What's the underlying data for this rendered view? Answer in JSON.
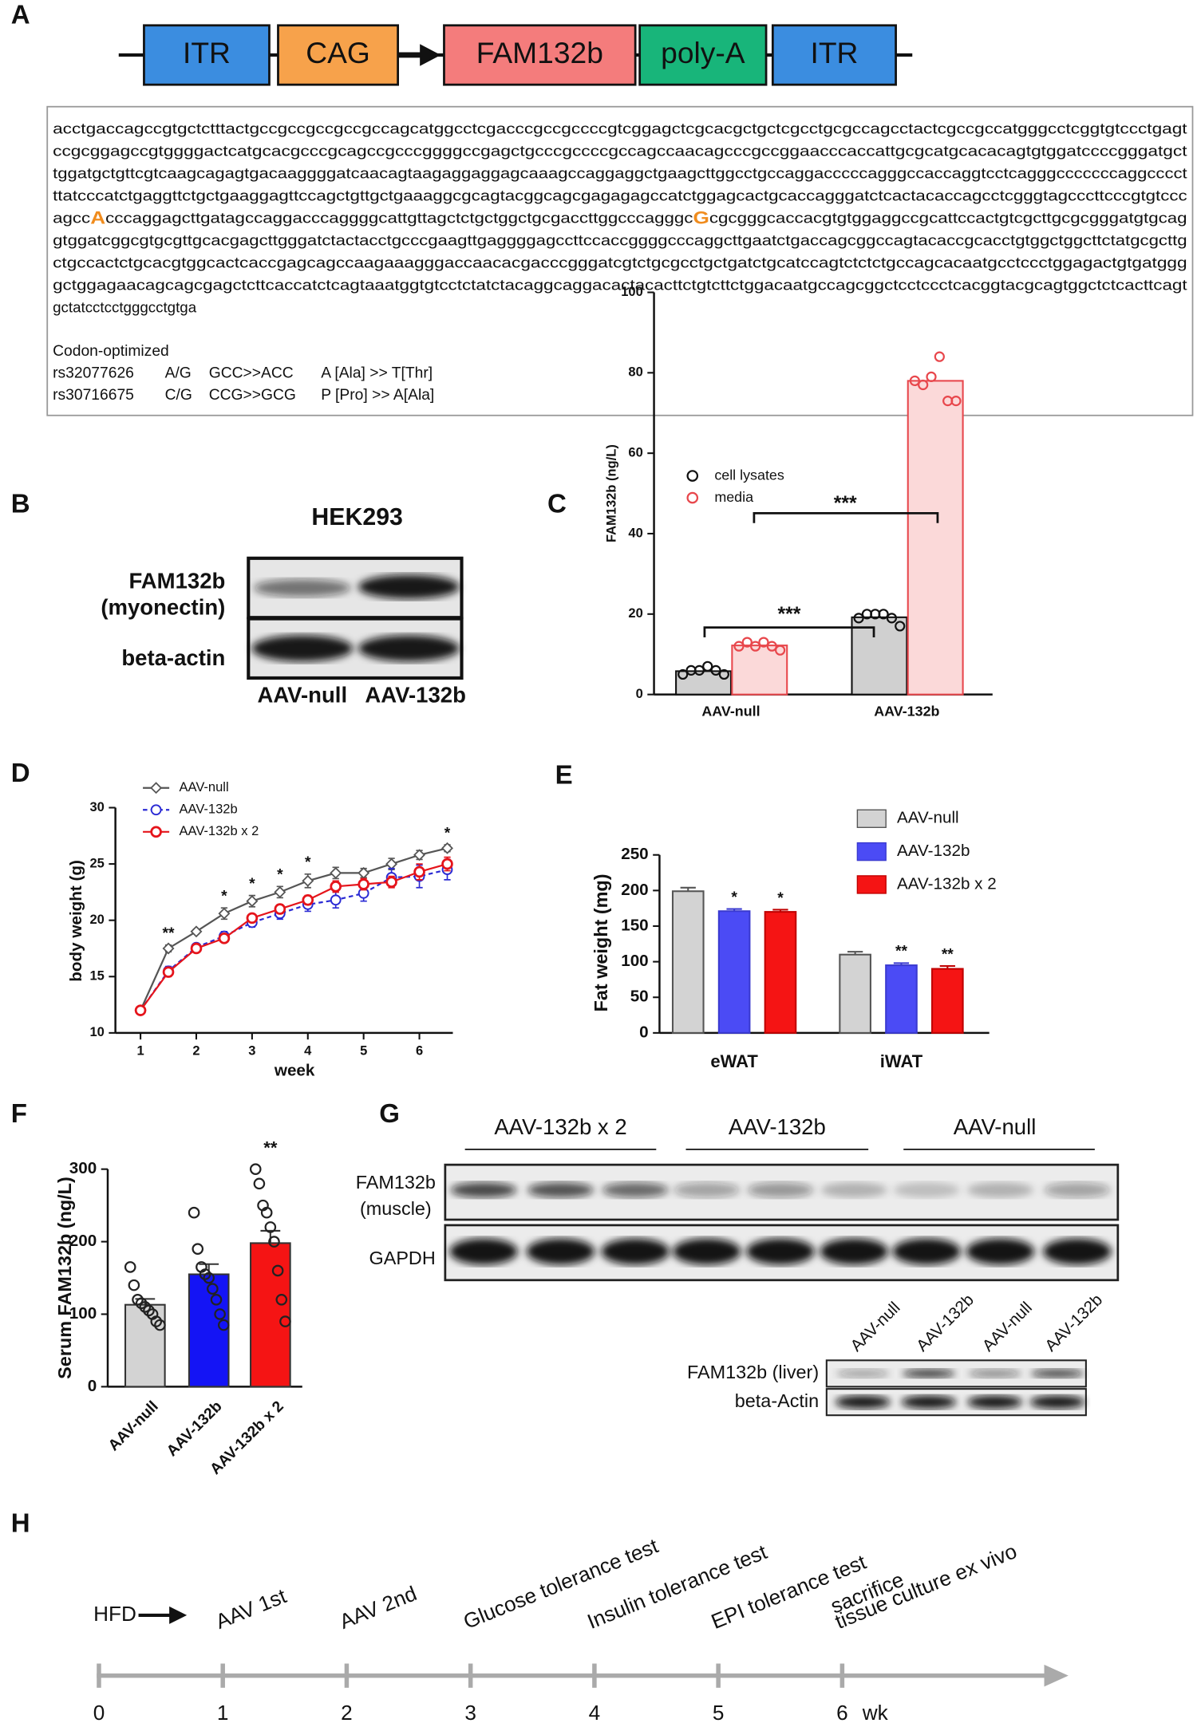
{
  "panel_labels": [
    "A",
    "B",
    "C",
    "D",
    "E",
    "F",
    "G",
    "H"
  ],
  "construct": {
    "elements": [
      {
        "label": "ITR",
        "color": "#3b8de0"
      },
      {
        "label": "CAG",
        "color": "#f7a24b"
      },
      {
        "label": "FAM132b",
        "color": "#f47c7c"
      },
      {
        "label": "poly-A",
        "color": "#18b57a"
      },
      {
        "label": "ITR",
        "color": "#3b8de0"
      }
    ]
  },
  "sequence": {
    "highlight_color": "#f08c1e",
    "lines": [
      [
        "acctgaccagccgtgctctttactgccgccgccgccgccagcatggcctcgacccgccgccccgtcggagctcgcacgctgctcgcctgcgccagcctactcgccgccatgggcctcggtgtccctgagt"
      ],
      [
        "ccgcggagccgtggggactcatgcacgcccgcagccgcccggggccgagctgcccgccccgccagccaacagcccgccggaacccaccattgcgcatgcacacagtgtggatccccgggatgct"
      ],
      [
        "tggatgctgttcgtcaagcagagtgacaaggggatcaacagtaagaggaggagcaaagccaggaggctgaagcttggcctgccaggacccccagggccaccaggtcctcagggcccccccaggcccct"
      ],
      [
        "ttatcccatctgaggttctgctgaaggagttccagctgttgctgaaaggcgcagtacggcagcgagagagccatctggagcactgcaccagggatctcactacaccagcctcgggtagcccttcccgtgtccc"
      ],
      [
        "agcc",
        "A",
        "cccaggagcttgatagccaggacccaggggcattgttagctctgctggctgcgaccttggcccagggc",
        "G",
        "cgcgggcaccacgtgtggaggccgcattccactgtcgcttgcgcgggatgtgcag"
      ],
      [
        "gtggatcggcgtgcgttgcacgagcttgggatctactacctgcccgaagttgaggggagccttccaccggggcccaggcttgaatctgaccagcggccagtacaccgcacctgtggctggcttctatgcgcttg"
      ],
      [
        "ctgccactctgcacgtggcactcaccgagcagccaagaaagggaccaacacgacccgggatcgtctgcgcctgctgatctgcatccagtctctctgccagcacaatgcctccctggagactgtgatggg"
      ],
      [
        "gctggagaacagcagcgagctcttcaccatctcagtaaatggtgtcctctatctacaggcaggacactacacttctgtcttctggacaatgccagcggctcctccctcacggtacgcagtggctctcacttcagt"
      ],
      [
        "gctatcctcctgggcctgtga"
      ]
    ],
    "note_title": "Codon-optimized",
    "variants": [
      [
        "rs32077626",
        "A/G",
        "GCC>>ACC",
        "A [Ala] >> T[Thr]"
      ],
      [
        "rs30716675",
        "C/G",
        "CCG>>GCG",
        "P [Pro] >> A[Ala]"
      ]
    ]
  },
  "blot_b": {
    "title": "HEK293",
    "rows": [
      [
        "FAM132b",
        "(myonectin)"
      ],
      [
        "beta-actin"
      ]
    ],
    "lanes": [
      "AAV-null",
      "AAV-132b"
    ]
  },
  "blot_g": {
    "groups": [
      "AAV-132b x 2",
      "AAV-132b",
      "AAV-null"
    ],
    "rows": [
      [
        "FAM132b",
        "(muscle)"
      ],
      [
        "GAPDH"
      ]
    ],
    "liver_lanes": [
      "AAV-null",
      "AAV-132b",
      "AAV-null",
      "AAV-132b"
    ],
    "liver_rows": [
      "FAM132b (liver)",
      "beta-Actin"
    ]
  },
  "timeline": {
    "start_label": "HFD",
    "ticks": [
      0,
      1,
      2,
      3,
      4,
      5,
      6
    ],
    "unit": "wk",
    "events": [
      {
        "week": 1,
        "lines": [
          "AAV 1st"
        ]
      },
      {
        "week": 2,
        "lines": [
          "AAV 2nd"
        ]
      },
      {
        "week": 3,
        "lines": [
          "Glucose tolerance test"
        ]
      },
      {
        "week": 4,
        "lines": [
          "Insulin tolerance test"
        ]
      },
      {
        "week": 5,
        "lines": [
          "EPI tolerance test"
        ]
      },
      {
        "week": 6,
        "lines": [
          "sacrifice",
          "tissue culture ex vivo"
        ]
      }
    ]
  },
  "chart_data": [
    {
      "type": "bar",
      "ylabel": "FAM132b (ng/L)",
      "categories": [
        "AAV-null",
        "AAV-132b"
      ],
      "series": [
        {
          "name": "cell lysates",
          "color": "#d0d0d0",
          "edge": "#111111",
          "values": [
            5.8,
            19.2
          ],
          "points": [
            [
              5,
              6,
              6,
              7,
              6,
              5
            ],
            [
              19,
              20,
              20,
              20,
              19,
              17
            ]
          ]
        },
        {
          "name": "media",
          "color": "#fbd9d9",
          "edge": "#e8474c",
          "values": [
            12.2,
            78
          ],
          "points": [
            [
              12,
              13,
              12,
              13,
              12,
              11
            ],
            [
              78,
              77,
              79,
              84,
              73,
              73
            ]
          ]
        }
      ],
      "ylim": [
        0,
        100
      ],
      "yticks": [
        0,
        20,
        40,
        60,
        80,
        100
      ],
      "comparisons": [
        "***",
        "***"
      ]
    },
    {
      "type": "line",
      "xlabel": "week",
      "ylabel": "body weight (g)",
      "x": [
        1,
        1.5,
        2,
        2.5,
        3,
        3.5,
        4,
        4.5,
        5,
        5.5,
        6,
        6.5
      ],
      "series": [
        {
          "name": "AAV-null",
          "color": "#555555",
          "marker": "diamond",
          "dashed": false,
          "values": [
            12,
            17.5,
            19,
            20.6,
            21.7,
            22.5,
            23.5,
            24.2,
            24.2,
            25,
            25.8,
            26.4
          ],
          "errors": [
            0.1,
            0.3,
            0.2,
            0.5,
            0.5,
            0.5,
            0.6,
            0.5,
            0.4,
            0.5,
            0.4,
            0.3
          ]
        },
        {
          "name": "AAV-132b",
          "color": "#2a2ad4",
          "marker": "circle",
          "dashed": true,
          "values": [
            12,
            15.5,
            17.6,
            18.6,
            19.8,
            20.6,
            21.4,
            21.8,
            22.4,
            23.8,
            23.9,
            24.5
          ],
          "errors": [
            0.1,
            0.4,
            0.3,
            0.4,
            0.4,
            0.5,
            0.6,
            0.7,
            0.7,
            0.8,
            1.0,
            0.9
          ]
        },
        {
          "name": "AAV-132b x 2",
          "color": "#e5141b",
          "marker": "circle",
          "dashed": false,
          "values": [
            12,
            15.4,
            17.5,
            18.4,
            20.2,
            21,
            21.8,
            23,
            23.2,
            23.4,
            24.3,
            25
          ],
          "errors": [
            0.1,
            0.4,
            0.3,
            0.3,
            0.3,
            0.4,
            0.4,
            0.5,
            0.5,
            0.5,
            0.7,
            0.6
          ]
        }
      ],
      "xlim": [
        0.55,
        6.6
      ],
      "xticks": [
        1,
        2,
        3,
        4,
        5,
        6
      ],
      "ylim": [
        10,
        30
      ],
      "yticks": [
        10,
        15,
        20,
        25,
        30
      ],
      "significance": [
        null,
        "**",
        null,
        "*",
        "*",
        "*",
        "*",
        null,
        null,
        null,
        null,
        "*"
      ]
    },
    {
      "type": "bar",
      "ylabel": "Fat weight (mg)",
      "categories": [
        "eWAT",
        "iWAT"
      ],
      "series": [
        {
          "name": "AAV-null",
          "color": "#d3d3d3",
          "edge": "#555555",
          "values": [
            199,
            110
          ],
          "errors": [
            5,
            4
          ],
          "significance": [
            null,
            null
          ]
        },
        {
          "name": "AAV-132b",
          "color": "#4b4bf5",
          "edge": "#3a3ad0",
          "values": [
            171,
            95
          ],
          "errors": [
            3,
            3
          ],
          "significance": [
            "*",
            "**"
          ]
        },
        {
          "name": "AAV-132b x 2",
          "color": "#f51414",
          "edge": "#c00000",
          "values": [
            170,
            90
          ],
          "errors": [
            3,
            4
          ],
          "significance": [
            "*",
            "**"
          ]
        }
      ],
      "ylim": [
        0,
        250
      ],
      "yticks": [
        0,
        50,
        100,
        150,
        200,
        250
      ]
    },
    {
      "type": "bar",
      "ylabel": "Serum FAM132b (ng/L)",
      "categories": [
        "AAV-null",
        "AAV-132b",
        "AAV-132b x 2"
      ],
      "series": [
        {
          "colors": [
            "#d3d3d3",
            "#1414f5",
            "#f51414"
          ],
          "edge": "#333333",
          "values": [
            113,
            155,
            198
          ],
          "errors": [
            8,
            14,
            17
          ],
          "points": [
            [
              165,
              140,
              120,
              115,
              110,
              105,
              100,
              90,
              85
            ],
            [
              240,
              190,
              165,
              155,
              150,
              135,
              120,
              100,
              85
            ],
            [
              300,
              280,
              250,
              240,
              220,
              200,
              160,
              120,
              90
            ]
          ],
          "significance": [
            null,
            null,
            "**"
          ]
        }
      ],
      "ylim": [
        0,
        300
      ],
      "yticks": [
        0,
        100,
        200,
        300
      ]
    }
  ]
}
